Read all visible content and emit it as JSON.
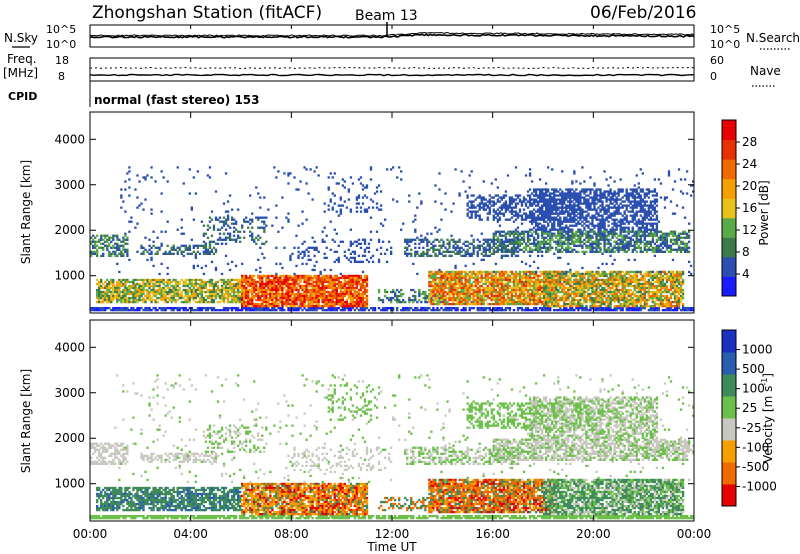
{
  "header": {
    "station": "Zhongshan Station (fitACF)",
    "beam": "Beam 13",
    "date": "06/Feb/2016"
  },
  "noise_panel": {
    "left_label": "N.Sky",
    "right_label": "N.Search",
    "left_ticks": [
      "10^5",
      "10^0"
    ],
    "right_ticks": [
      "10^5",
      "10^0"
    ]
  },
  "freq_panel": {
    "left_label_1": "Freq.",
    "left_label_2": "[MHz]",
    "left_ticks": [
      "18",
      "8"
    ],
    "right_label": "Nave",
    "right_ticks": [
      "60",
      "0"
    ]
  },
  "cpid_panel": {
    "label": "CPID",
    "mode": "normal (fast stereo) 153"
  },
  "x_axis": {
    "ticks": [
      "00:00",
      "04:00",
      "08:00",
      "12:00",
      "16:00",
      "20:00",
      "00:00"
    ],
    "label": "Time UT"
  },
  "colors": {
    "power": [
      "#1a1aff",
      "#2a4fb0",
      "#3c7a4a",
      "#5aaa4a",
      "#e6c21a",
      "#f5a000",
      "#f06a00",
      "#e83000",
      "#e60000"
    ],
    "velocity": [
      "#e60000",
      "#f06a00",
      "#f5a000",
      "#c8c8c0",
      "#6cc04a",
      "#3f8a5a",
      "#2a5cb0",
      "#1a30c0"
    ]
  },
  "chart_data": [
    {
      "type": "heatmap",
      "name": "power",
      "ylabel": "Slant Range [km]",
      "yticks": [
        "1000",
        "2000",
        "3000",
        "4000"
      ],
      "ylim": [
        180,
        4600
      ],
      "colorbar_label": "Power [dB]",
      "colorbar_ticks": [
        "4",
        "8",
        "12",
        "16",
        "20",
        "24",
        "28"
      ]
    },
    {
      "type": "heatmap",
      "name": "velocity",
      "ylabel": "Slant Range [km]",
      "yticks": [
        "1000",
        "2000",
        "3000",
        "4000"
      ],
      "ylim": [
        180,
        4600
      ],
      "colorbar_label": "Velocity [m s",
      "colorbar_label_sup": "-1",
      "colorbar_label_end": "]",
      "colorbar_ticks": [
        "1000",
        "500",
        "100",
        "25",
        "-25",
        "-100",
        "-500",
        "-1000"
      ]
    }
  ]
}
